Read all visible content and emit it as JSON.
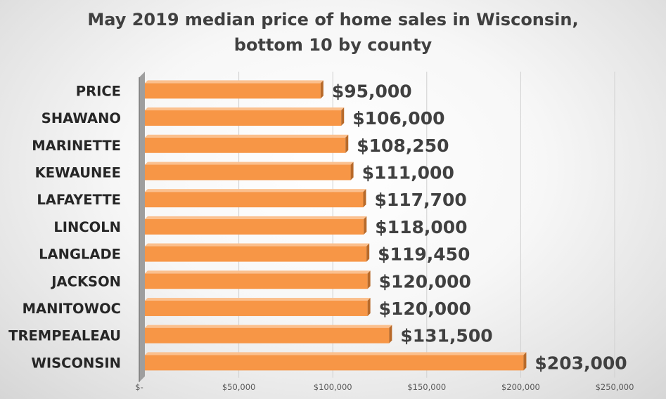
{
  "chart_data": {
    "type": "bar",
    "orientation": "horizontal",
    "title_line1": "May 2019 median price of home sales in Wisconsin,",
    "title_line2": "bottom 10 by county",
    "categories": [
      "PRICE",
      "SHAWANO",
      "MARINETTE",
      "KEWAUNEE",
      "LAFAYETTE",
      "LINCOLN",
      "LANGLADE",
      "JACKSON",
      "MANITOWOC",
      "TREMPEALEAU",
      "WISCONSIN"
    ],
    "values": [
      95000,
      106000,
      108250,
      111000,
      117700,
      118000,
      119450,
      120000,
      120000,
      131500,
      203000
    ],
    "value_labels": [
      "$95,000",
      "$106,000",
      "$108,250",
      "$111,000",
      "$117,700",
      "$118,000",
      "$119,450",
      "$120,000",
      "$120,000",
      "$131,500",
      "$203,000"
    ],
    "xlim": [
      0,
      250000
    ],
    "ticks": [
      0,
      50000,
      100000,
      150000,
      200000,
      250000
    ],
    "tick_labels": [
      "$-",
      "$50,000",
      "$100,000",
      "$150,000",
      "$200,000",
      "$250,000"
    ],
    "xlabel": "",
    "ylabel": "",
    "grid": true,
    "legend": "none",
    "bar_color": "#f79646",
    "bar_top_color": "#fbc08e",
    "bar_end_color": "#b86a2a",
    "wall_color": "#9e9e9e"
  }
}
